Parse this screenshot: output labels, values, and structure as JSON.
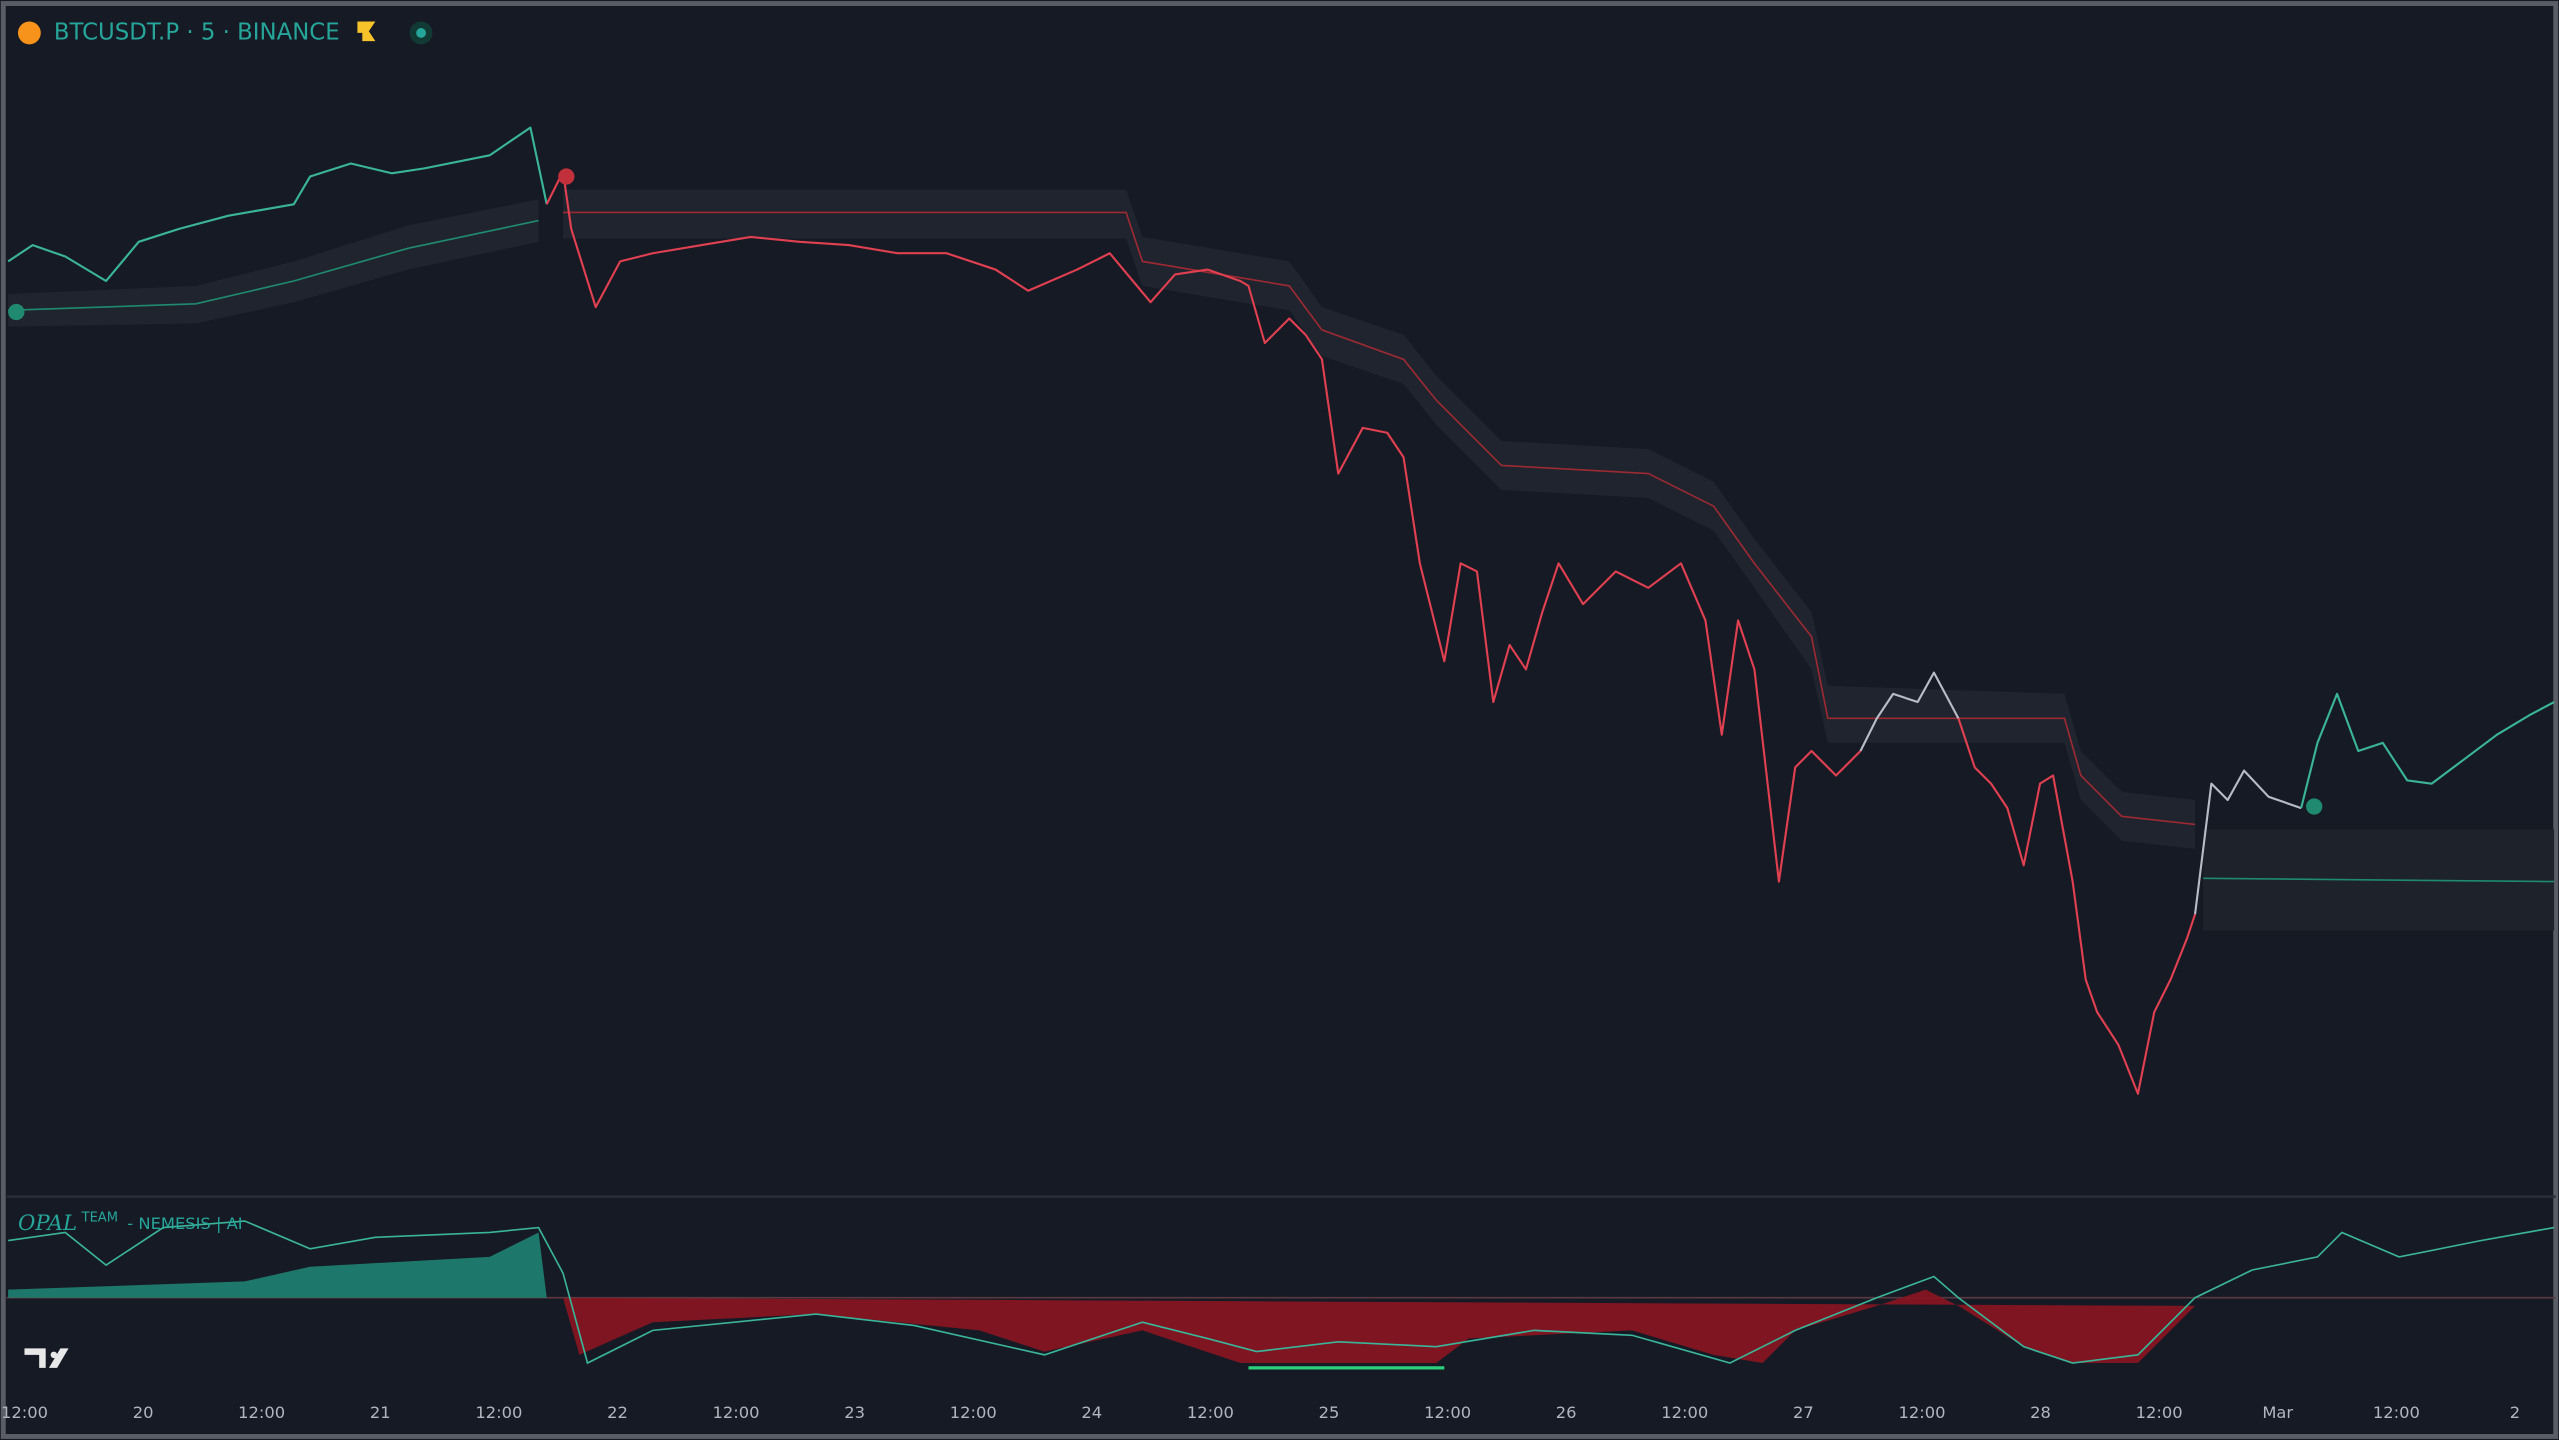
{
  "header": {
    "symbol": "BTCUSDT.P · 5 · BINANCE"
  },
  "indicator": {
    "name": "OPAL",
    "team": "TEAM",
    "label": "- NEMESIS | AI"
  },
  "time_axis": {
    "labels": [
      "12:00",
      "20",
      "12:00",
      "21",
      "12:00",
      "22",
      "12:00",
      "23",
      "12:00",
      "24",
      "12:00",
      "25",
      "12:00",
      "26",
      "12:00",
      "27",
      "12:00",
      "28",
      "12:00",
      "Mar",
      "12:00",
      "2"
    ]
  }
}
